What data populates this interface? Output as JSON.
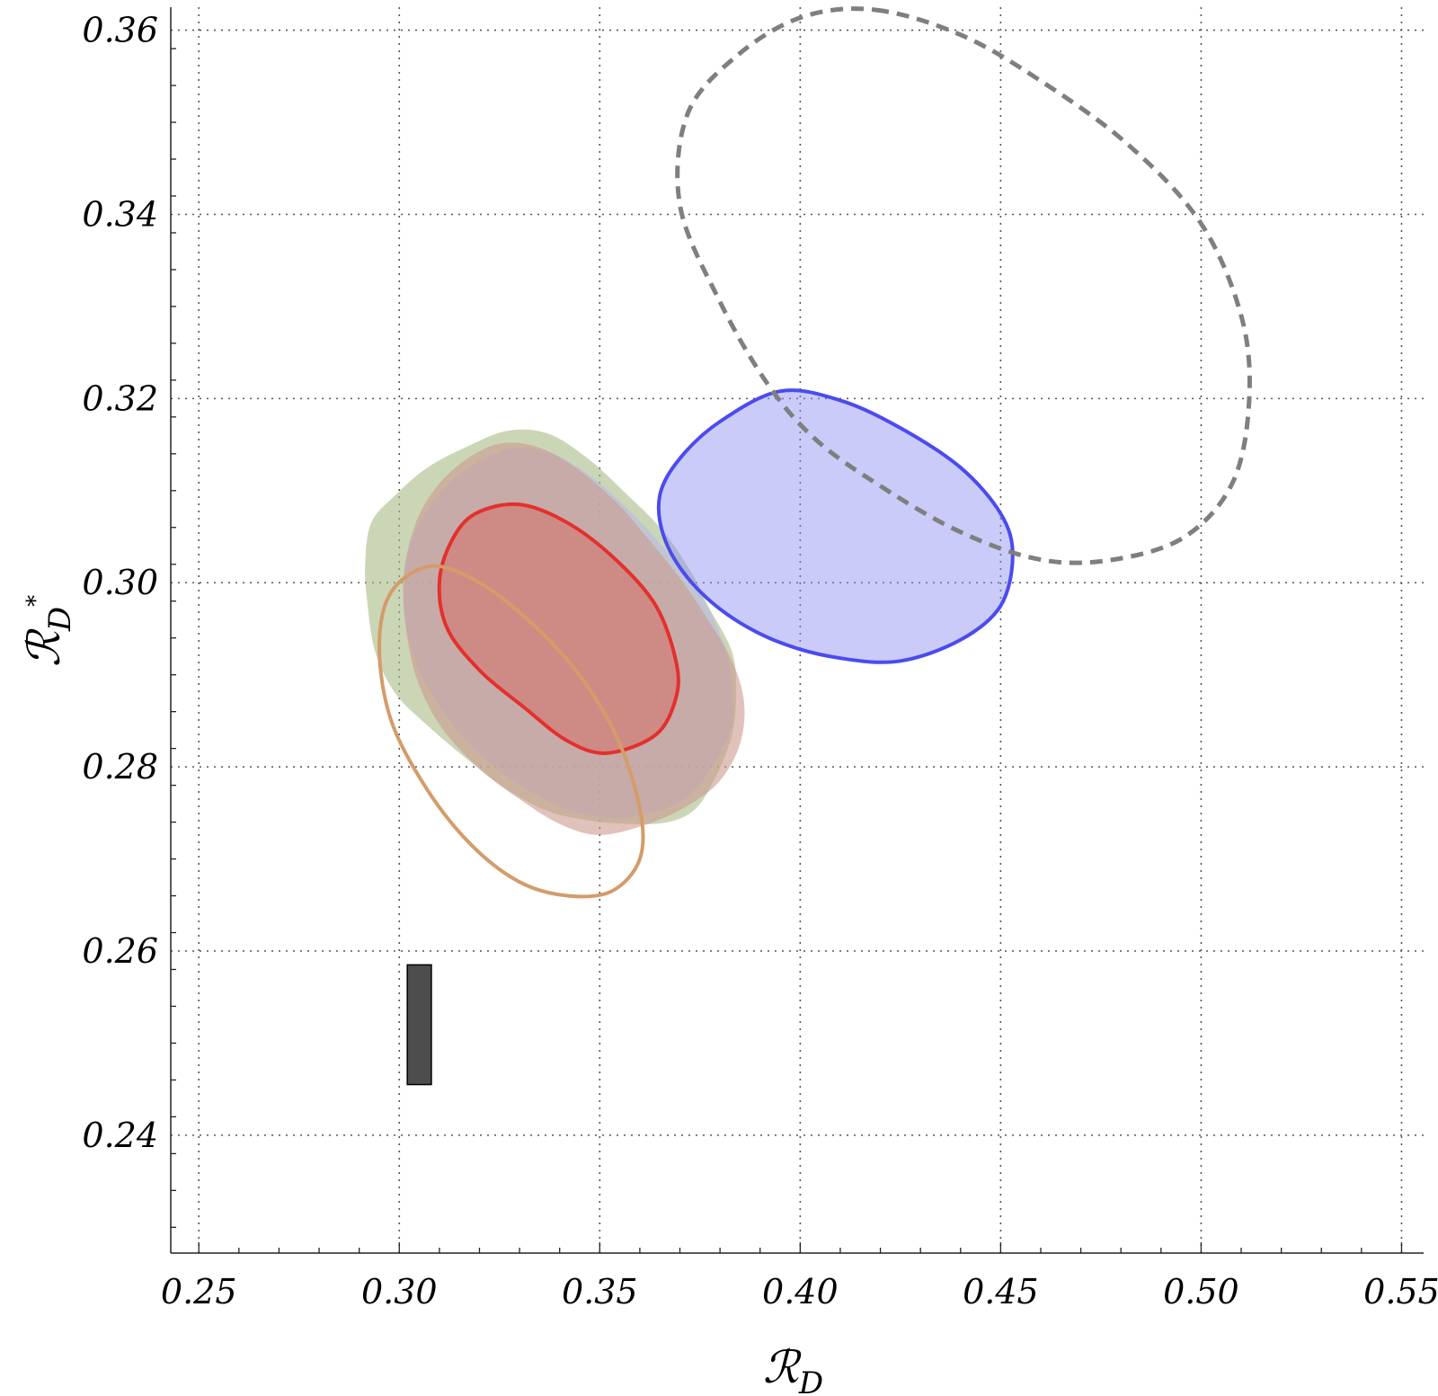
{
  "chart_data": {
    "type": "contour",
    "title": "",
    "xlabel": {
      "main": "ℛ",
      "sub": "D"
    },
    "ylabel": {
      "main": "ℛ",
      "sub": "D",
      "sup": "*"
    },
    "xlim": [
      0.243,
      0.5555
    ],
    "ylim": [
      0.2272,
      0.3625
    ],
    "grid": true,
    "xticks": [
      0.25,
      0.3,
      0.35,
      0.4,
      0.45,
      0.5,
      0.55
    ],
    "yticks": [
      0.24,
      0.26,
      0.28,
      0.3,
      0.32,
      0.34,
      0.36
    ],
    "xtick_labels": [
      "0.25",
      "0.30",
      "0.35",
      "0.40",
      "0.45",
      "0.50",
      "0.55"
    ],
    "ytick_labels": [
      "0.24",
      "0.26",
      "0.28",
      "0.30",
      "0.32",
      "0.34",
      "0.36"
    ],
    "series": [
      {
        "name": "green filled region",
        "style": "filled",
        "fill": "#a8bb85",
        "fill_opacity": 0.6,
        "stroke": "none",
        "points": [
          [
            0.337,
            0.3162
          ],
          [
            0.347,
            0.3135
          ],
          [
            0.357,
            0.3095
          ],
          [
            0.366,
            0.3055
          ],
          [
            0.373,
            0.301
          ],
          [
            0.377,
            0.2975
          ],
          [
            0.383,
            0.2925
          ],
          [
            0.384,
            0.288
          ],
          [
            0.383,
            0.2835
          ],
          [
            0.379,
            0.279
          ],
          [
            0.374,
            0.2755
          ],
          [
            0.367,
            0.274
          ],
          [
            0.357,
            0.2738
          ],
          [
            0.347,
            0.2742
          ],
          [
            0.337,
            0.2752
          ],
          [
            0.327,
            0.2775
          ],
          [
            0.317,
            0.2808
          ],
          [
            0.307,
            0.2845
          ],
          [
            0.299,
            0.288
          ],
          [
            0.294,
            0.2925
          ],
          [
            0.292,
            0.298
          ],
          [
            0.2915,
            0.302
          ],
          [
            0.293,
            0.3065
          ],
          [
            0.299,
            0.3095
          ],
          [
            0.307,
            0.3125
          ],
          [
            0.317,
            0.3148
          ],
          [
            0.327,
            0.3165
          ]
        ]
      },
      {
        "name": "lavender filled region",
        "style": "filled",
        "fill": "#b9b9e6",
        "fill_opacity": 0.6,
        "stroke": "none",
        "points": [
          [
            0.327,
            0.3145
          ],
          [
            0.337,
            0.3142
          ],
          [
            0.347,
            0.3118
          ],
          [
            0.357,
            0.308
          ],
          [
            0.366,
            0.3038
          ],
          [
            0.374,
            0.2995
          ],
          [
            0.38,
            0.2945
          ],
          [
            0.383,
            0.2895
          ],
          [
            0.383,
            0.2845
          ],
          [
            0.378,
            0.28
          ],
          [
            0.371,
            0.2765
          ],
          [
            0.361,
            0.2748
          ],
          [
            0.351,
            0.2745
          ],
          [
            0.341,
            0.2755
          ],
          [
            0.331,
            0.2778
          ],
          [
            0.321,
            0.281
          ],
          [
            0.313,
            0.2848
          ],
          [
            0.306,
            0.2895
          ],
          [
            0.302,
            0.2945
          ],
          [
            0.301,
            0.2995
          ],
          [
            0.303,
            0.3045
          ],
          [
            0.308,
            0.3085
          ],
          [
            0.315,
            0.3118
          ]
        ]
      },
      {
        "name": "salmon filled region",
        "style": "filled",
        "fill": "#cb9a8e",
        "fill_opacity": 0.6,
        "stroke": "none",
        "points": [
          [
            0.324,
            0.315
          ],
          [
            0.334,
            0.3148
          ],
          [
            0.344,
            0.3125
          ],
          [
            0.354,
            0.3088
          ],
          [
            0.362,
            0.3048
          ],
          [
            0.37,
            0.3005
          ],
          [
            0.377,
            0.296
          ],
          [
            0.383,
            0.2915
          ],
          [
            0.386,
            0.287
          ],
          [
            0.385,
            0.2825
          ],
          [
            0.38,
            0.2785
          ],
          [
            0.372,
            0.2758
          ],
          [
            0.362,
            0.2738
          ],
          [
            0.35,
            0.2726
          ],
          [
            0.34,
            0.2738
          ],
          [
            0.33,
            0.2765
          ],
          [
            0.32,
            0.2798
          ],
          [
            0.311,
            0.284
          ],
          [
            0.305,
            0.2888
          ],
          [
            0.302,
            0.294
          ],
          [
            0.301,
            0.3
          ],
          [
            0.303,
            0.305
          ],
          [
            0.307,
            0.309
          ],
          [
            0.314,
            0.3125
          ]
        ]
      },
      {
        "name": "red contour",
        "style": "filled-outline",
        "fill": "#d56b63",
        "fill_opacity": 0.5,
        "stroke": "#e4302c",
        "stroke_width": 4,
        "points": [
          [
            0.33,
            0.3085
          ],
          [
            0.342,
            0.3065
          ],
          [
            0.354,
            0.3025
          ],
          [
            0.364,
            0.2975
          ],
          [
            0.369,
            0.2915
          ],
          [
            0.369,
            0.2875
          ],
          [
            0.364,
            0.2835
          ],
          [
            0.352,
            0.2815
          ],
          [
            0.342,
            0.2828
          ],
          [
            0.331,
            0.2865
          ],
          [
            0.32,
            0.2905
          ],
          [
            0.312,
            0.295
          ],
          [
            0.31,
            0.3
          ],
          [
            0.313,
            0.3045
          ],
          [
            0.319,
            0.3075
          ]
        ]
      },
      {
        "name": "blue contour",
        "style": "filled-outline",
        "fill": "#8c8cf5",
        "fill_opacity": 0.45,
        "stroke": "#4b4bef",
        "stroke_width": 4,
        "points": [
          [
            0.395,
            0.3208
          ],
          [
            0.41,
            0.3198
          ],
          [
            0.425,
            0.3168
          ],
          [
            0.44,
            0.3125
          ],
          [
            0.45,
            0.3075
          ],
          [
            0.453,
            0.303
          ],
          [
            0.45,
            0.2975
          ],
          [
            0.44,
            0.2938
          ],
          [
            0.425,
            0.2915
          ],
          [
            0.41,
            0.2918
          ],
          [
            0.395,
            0.2935
          ],
          [
            0.382,
            0.2965
          ],
          [
            0.372,
            0.3005
          ],
          [
            0.366,
            0.305
          ],
          [
            0.365,
            0.3095
          ],
          [
            0.37,
            0.3135
          ],
          [
            0.38,
            0.3175
          ]
        ]
      },
      {
        "name": "tan contour",
        "style": "outline",
        "fill": "none",
        "stroke": "#d49c6a",
        "stroke_width": 4,
        "points": [
          [
            0.308,
            0.3018
          ],
          [
            0.32,
            0.3
          ],
          [
            0.332,
            0.296
          ],
          [
            0.344,
            0.2905
          ],
          [
            0.354,
            0.2835
          ],
          [
            0.36,
            0.2755
          ],
          [
            0.36,
            0.27
          ],
          [
            0.353,
            0.2665
          ],
          [
            0.342,
            0.266
          ],
          [
            0.33,
            0.2675
          ],
          [
            0.318,
            0.2715
          ],
          [
            0.307,
            0.2775
          ],
          [
            0.298,
            0.285
          ],
          [
            0.295,
            0.293
          ],
          [
            0.298,
            0.299
          ]
        ]
      },
      {
        "name": "gray dashed contour",
        "style": "dashed",
        "fill": "none",
        "stroke": "#7f7f7f",
        "stroke_width": 5,
        "points": [
          [
            0.419,
            0.3622
          ],
          [
            0.44,
            0.3595
          ],
          [
            0.46,
            0.3545
          ],
          [
            0.482,
            0.3475
          ],
          [
            0.5,
            0.339
          ],
          [
            0.51,
            0.329
          ],
          [
            0.512,
            0.32
          ],
          [
            0.508,
            0.311
          ],
          [
            0.496,
            0.305
          ],
          [
            0.478,
            0.3025
          ],
          [
            0.46,
            0.3025
          ],
          [
            0.44,
            0.3055
          ],
          [
            0.42,
            0.3105
          ],
          [
            0.404,
            0.3155
          ],
          [
            0.392,
            0.3215
          ],
          [
            0.38,
            0.3305
          ],
          [
            0.37,
            0.341
          ],
          [
            0.372,
            0.351
          ],
          [
            0.385,
            0.3575
          ],
          [
            0.401,
            0.3615
          ]
        ]
      }
    ],
    "rectangles": [
      {
        "name": "SM prediction box",
        "x0": 0.302,
        "x1": 0.308,
        "y0": 0.2455,
        "y1": 0.2585,
        "fill": "#4d4d4d",
        "stroke": "#000000"
      }
    ]
  }
}
